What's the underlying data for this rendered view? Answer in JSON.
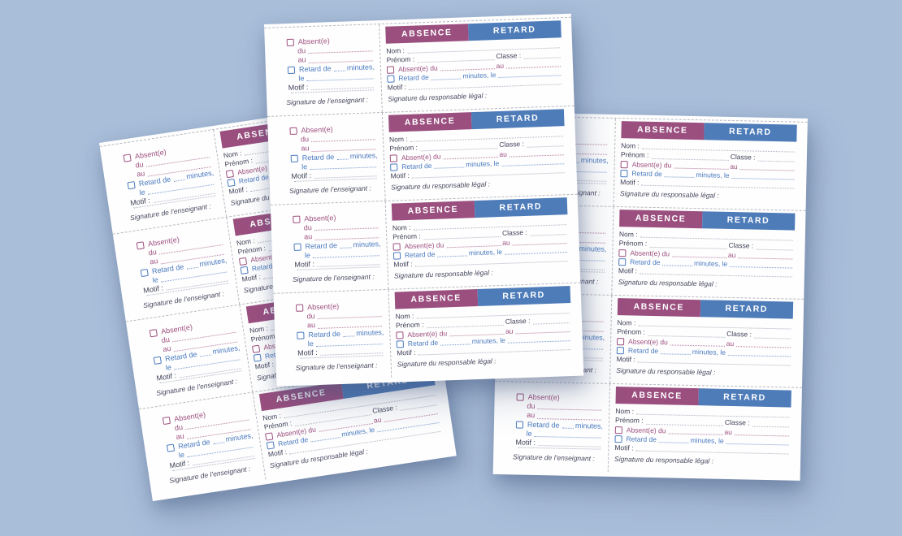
{
  "scene": {
    "background_color": "#a9bed9",
    "sheet_color": "#fefefe",
    "sheets": [
      "left",
      "middle",
      "right"
    ],
    "tickets_per_sheet": 4
  },
  "colors": {
    "absence_header_bg": "#9a4f7f",
    "retard_header_bg": "#4e7cb9",
    "absence_text": "#9c4e7e",
    "retard_text": "#4a7abf",
    "body_text": "#3e4057",
    "dotted_leader": "#9298ad",
    "cut_line": "#b7b9c1"
  },
  "ticket": {
    "header": {
      "absence": "ABSENCE",
      "retard": "RETARD"
    },
    "stub": {
      "absent": "Absent(e)",
      "du": "du",
      "au": "au",
      "retard_de": "Retard de",
      "minutes": "minutes,",
      "le": "le",
      "motif": "Motif :",
      "signature": "Signature de l’enseignant :"
    },
    "form": {
      "nom": "Nom :",
      "prenom": "Prénom :",
      "classe": "Classe :",
      "absent_du": "Absent(e) du",
      "au": "au",
      "retard_de": "Retard de",
      "minutes_le": "minutes, le",
      "motif": "Motif :",
      "signature": "Signature du responsable légal :"
    }
  }
}
